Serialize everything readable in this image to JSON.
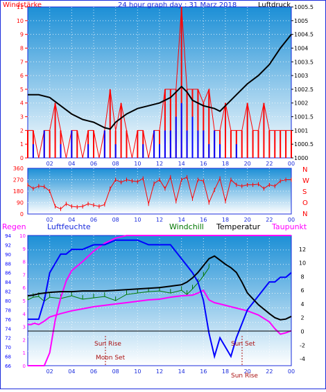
{
  "colors": {
    "frame_blue": "#1a2bdc",
    "sky_top": "#1c8fd6",
    "sky_bottom": "#ffffff",
    "wind_red": "#ff0000",
    "gust_blue": "#0000ff",
    "pressure_black": "#000000",
    "dir_red": "#ff0000",
    "humidity_blue": "#0000ff",
    "dewpoint_magenta": "#ff00ff",
    "windchill_green": "#007700",
    "sun_label": "#aa1111",
    "regen": "#ff00ff"
  },
  "chart_data": [
    {
      "type": "line",
      "panel": "wind-pressure",
      "title": "24 hour graph day : 31 Marz 2018",
      "left_axis_label": "Windstärke",
      "right_axis_label": "Luftdruck",
      "x_ticks": [
        "02",
        "04",
        "06",
        "08",
        "10",
        "12",
        "14",
        "16",
        "18",
        "20",
        "22",
        "00"
      ],
      "left_ticks": [
        "0",
        "1",
        "2",
        "3",
        "4",
        "5",
        "6",
        "7",
        "8",
        "9",
        "10",
        "11"
      ],
      "right_ticks": [
        "1000",
        "1000.5",
        "1001",
        "1001.5",
        "1002",
        "1002.5",
        "1003",
        "1003.5",
        "1004",
        "1004.5",
        "1005",
        "1005.5"
      ],
      "xlim": [
        0,
        24
      ],
      "ylim_left": [
        0,
        11
      ],
      "ylim_right": [
        1000,
        1005.5
      ],
      "pressure": {
        "x": [
          0,
          1,
          2,
          3,
          4,
          5,
          6,
          7,
          7.5,
          8,
          9,
          10,
          11,
          12,
          13,
          13.5,
          14,
          14.5,
          15,
          16,
          17,
          17.5,
          18,
          19,
          20,
          21,
          22,
          23,
          24
        ],
        "y": [
          1002.3,
          1002.3,
          1002.2,
          1001.9,
          1001.6,
          1001.4,
          1001.3,
          1001.1,
          1001.05,
          1001.3,
          1001.6,
          1001.8,
          1001.9,
          1002.0,
          1002.2,
          1002.4,
          1002.6,
          1002.4,
          1002.1,
          1001.9,
          1001.8,
          1001.7,
          1001.9,
          1002.3,
          1002.7,
          1003.0,
          1003.4,
          1004.0,
          1004.5
        ]
      },
      "wind_speed": {
        "x": [
          0,
          0.5,
          1,
          1.5,
          2,
          2.5,
          3,
          3.5,
          4,
          4.5,
          5,
          5.5,
          6,
          6.5,
          7,
          7.5,
          8,
          8.5,
          9,
          9.5,
          10,
          10.5,
          11,
          11.5,
          12,
          12.5,
          13,
          13.5,
          14,
          14.5,
          15,
          15.5,
          16,
          16.5,
          17,
          17.5,
          18,
          18.5,
          19,
          19.5,
          20,
          20.5,
          21,
          21.5,
          22,
          22.5,
          23,
          23.5,
          24
        ],
        "y": [
          2,
          2,
          0,
          2,
          2,
          4,
          2,
          0,
          2,
          2,
          0,
          2,
          2,
          0,
          2,
          5,
          2,
          4,
          2,
          0,
          2,
          2,
          0,
          2,
          2,
          5,
          5,
          5,
          11,
          5,
          5,
          5,
          4,
          5,
          2,
          2,
          4,
          2,
          2,
          2,
          4,
          2,
          2,
          4,
          2,
          2,
          2,
          2,
          2
        ]
      },
      "wind_gust": {
        "x": [
          0,
          0.5,
          1,
          1.5,
          2,
          2.5,
          3,
          3.5,
          4,
          4.5,
          5,
          5.5,
          6,
          6.5,
          7,
          7.5,
          8,
          8.5,
          9,
          9.5,
          10,
          10.5,
          11,
          11.5,
          12,
          12.5,
          13,
          13.5,
          14,
          14.5,
          15,
          15.5,
          16,
          16.5,
          17,
          17.5,
          18,
          18.5,
          19,
          19.5,
          20,
          20.5,
          21,
          21.5,
          22,
          22.5,
          23,
          23.5,
          24
        ],
        "y": [
          0,
          1,
          0,
          2,
          0,
          0,
          1,
          0,
          2,
          0,
          0,
          1,
          0,
          0,
          2,
          0,
          1,
          0,
          0,
          0,
          0,
          1,
          0,
          2,
          1,
          2,
          2,
          3,
          4,
          2,
          3,
          2,
          2,
          1,
          2,
          1,
          0,
          0,
          1,
          0,
          0,
          0,
          0,
          0,
          0,
          0,
          0,
          0,
          0
        ]
      }
    },
    {
      "type": "line",
      "panel": "wind-direction",
      "x_ticks": [
        "02",
        "04",
        "06",
        "08",
        "10",
        "12",
        "14",
        "16",
        "18",
        "20",
        "22",
        "00"
      ],
      "left_ticks": [
        "0",
        "90",
        "180",
        "270",
        "360"
      ],
      "right_labels": [
        "N",
        "W",
        "S",
        "O",
        "N"
      ],
      "xlim": [
        0,
        24
      ],
      "ylim": [
        0,
        360
      ],
      "direction": {
        "x": [
          0,
          0.5,
          1,
          1.5,
          2,
          2.5,
          3,
          3.5,
          4,
          4.5,
          5,
          5.5,
          6,
          6.5,
          7,
          7.5,
          8,
          8.5,
          9,
          9.5,
          10,
          10.5,
          11,
          11.5,
          12,
          12.5,
          13,
          13.5,
          14,
          14.5,
          15,
          15.5,
          16,
          16.5,
          17,
          17.5,
          18,
          18.5,
          19,
          19.5,
          20,
          20.5,
          21,
          21.5,
          22,
          22.5,
          23,
          23.5,
          24
        ],
        "y": [
          230,
          200,
          220,
          215,
          180,
          60,
          40,
          80,
          60,
          55,
          60,
          80,
          70,
          60,
          75,
          200,
          270,
          250,
          270,
          260,
          255,
          280,
          80,
          240,
          270,
          200,
          290,
          100,
          270,
          290,
          120,
          270,
          260,
          90,
          190,
          280,
          100,
          270,
          230,
          220,
          230,
          230,
          235,
          200,
          230,
          220,
          260,
          270,
          270
        ]
      }
    },
    {
      "type": "line",
      "panel": "temperature-humidity",
      "labels": {
        "regen": "Regen",
        "luftfeuchte": "Luftfeuchte",
        "windchill": "Windchill",
        "temperatur": "Temperatur",
        "taupunkt": "Taupunkt",
        "sun_rise": "Sun Rise",
        "moon_set": "Moon Set",
        "sun_set": "Sun Set",
        "moon_rise": "Sun Rise"
      },
      "x_ticks": [
        "02",
        "04",
        "06",
        "08",
        "10",
        "12",
        "14",
        "16",
        "18",
        "20",
        "22",
        "00"
      ],
      "rain_ticks": [
        "0",
        "1",
        "2",
        "3",
        "4",
        "5",
        "6",
        "7",
        "8",
        "9",
        "10"
      ],
      "humidity_ticks": [
        "66",
        "68",
        "70",
        "72",
        "74",
        "76",
        "78",
        "80",
        "82",
        "84",
        "86",
        "88",
        "90",
        "92",
        "94"
      ],
      "temp_ticks": [
        "-4",
        "-2",
        "0",
        "2",
        "4",
        "6",
        "8",
        "10",
        "12"
      ],
      "xlim": [
        0,
        24
      ],
      "ylim_rain": [
        0,
        10
      ],
      "ylim_humidity": [
        66,
        94
      ],
      "ylim_temp": [
        -5,
        14
      ],
      "humidity": {
        "x": [
          0,
          0.5,
          1,
          1.5,
          2,
          2.5,
          3,
          3.5,
          4,
          5,
          6,
          7,
          8,
          9,
          10,
          11,
          12,
          13,
          14,
          15,
          15.5,
          16,
          16.5,
          17,
          17.5,
          18,
          18.5,
          19,
          20,
          21,
          22,
          22.5,
          23,
          23.5,
          24
        ],
        "y": [
          76,
          76,
          76,
          80,
          86,
          88,
          90,
          90,
          91,
          91,
          92,
          92,
          93,
          93,
          93,
          92,
          92,
          92,
          89,
          86,
          84,
          80,
          73,
          68,
          72,
          70,
          68,
          72,
          78,
          81,
          84,
          84,
          85,
          85,
          86
        ]
      },
      "temperature": {
        "x": [
          0,
          0.5,
          1,
          1.5,
          2,
          3,
          4,
          5,
          6,
          7,
          8,
          9,
          10,
          11,
          12,
          13,
          14,
          14.5,
          15,
          15.5,
          16,
          16.5,
          17,
          17.5,
          18,
          18.5,
          19,
          19.5,
          20,
          21,
          22,
          22.5,
          23,
          23.5,
          24
        ],
        "y": [
          5.2,
          5.3,
          5.5,
          5.6,
          5.7,
          5.8,
          5.8,
          5.9,
          5.9,
          5.9,
          6.0,
          6.1,
          6.2,
          6.3,
          6.4,
          6.6,
          6.8,
          7.2,
          7.8,
          8.6,
          9.6,
          10.6,
          11.0,
          10.4,
          9.8,
          9.3,
          8.6,
          7.2,
          5.6,
          3.9,
          2.6,
          2.0,
          1.7,
          1.8,
          2.2
        ]
      },
      "windchill": {
        "x": [
          0,
          0.5,
          1,
          1.5,
          2,
          3,
          4,
          5,
          6,
          7,
          8,
          9,
          10,
          11,
          12,
          13,
          14,
          14.5,
          15,
          15.5,
          16,
          16.5
        ],
        "y": [
          4.6,
          5.0,
          5.1,
          4.4,
          5.0,
          4.8,
          5.2,
          4.7,
          4.9,
          5.1,
          4.5,
          5.4,
          5.6,
          5.8,
          5.9,
          5.6,
          6.0,
          5.4,
          6.2,
          7.1,
          8.1,
          9.3
        ]
      },
      "dewpoint": {
        "x": [
          0,
          0.3,
          0.6,
          1,
          1.5,
          2,
          3,
          4,
          5,
          6,
          7,
          8,
          9,
          10,
          11,
          12,
          13,
          14,
          15,
          15.5,
          16,
          16.5,
          17,
          17.5,
          18,
          19,
          20,
          21,
          22,
          22.5,
          23,
          23.5,
          24
        ],
        "y": [
          1.0,
          1.0,
          1.2,
          1.0,
          1.5,
          2.1,
          2.6,
          3.0,
          3.3,
          3.6,
          3.8,
          4.0,
          4.2,
          4.4,
          4.6,
          4.7,
          5.0,
          5.2,
          5.3,
          5.6,
          6.0,
          4.6,
          4.2,
          4.0,
          3.8,
          3.4,
          3.0,
          2.4,
          1.4,
          0.4,
          -0.4,
          -0.2,
          0.1
        ]
      },
      "rain": {
        "x": [
          0,
          1.5,
          2,
          2.5,
          3,
          3.5,
          4,
          5,
          6,
          7,
          8,
          9,
          10,
          24
        ],
        "y": [
          0,
          0,
          1,
          3.5,
          5.2,
          6.5,
          7.3,
          8.0,
          8.8,
          9.4,
          9.8,
          10,
          10,
          10
        ]
      }
    }
  ]
}
